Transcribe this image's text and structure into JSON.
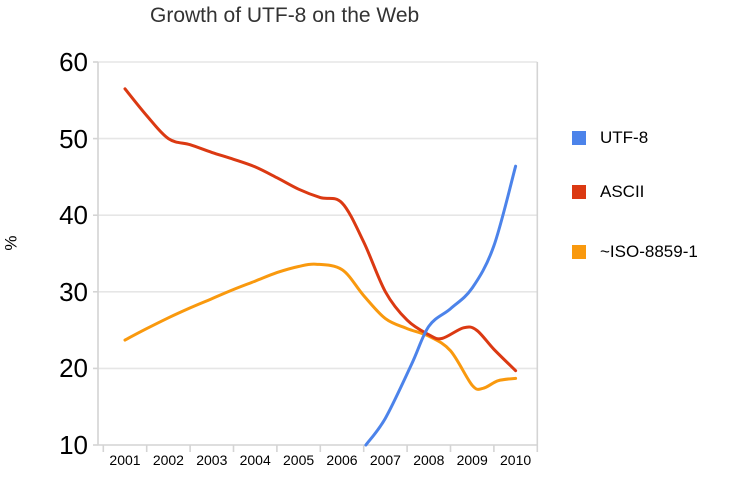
{
  "title": "Growth of UTF-8 on the Web",
  "colors": {
    "utf8": "#4C83EA",
    "ascii": "#DB3912",
    "iso": "#F9990E",
    "gridline": "#E6E6E6",
    "axis": "#D4D4D4",
    "title_text": "#333333",
    "label_text": "#000000"
  },
  "legend": {
    "items": [
      {
        "label": "UTF-8",
        "color": "#4C83EA"
      },
      {
        "label": "ASCII",
        "color": "#DB3912"
      },
      {
        "label": "~ISO-8859-1",
        "color": "#F9990E"
      }
    ]
  },
  "chart_data": {
    "type": "line",
    "title": "Growth of UTF-8 on the Web",
    "xlabel": "",
    "ylabel": "%",
    "x_ticks": [
      2001,
      2002,
      2003,
      2004,
      2005,
      2006,
      2007,
      2008,
      2009,
      2010
    ],
    "y_ticks": [
      10,
      20,
      30,
      40,
      50,
      60
    ],
    "ylim": [
      10,
      60
    ],
    "xlim": [
      2000.4,
      2010.5
    ],
    "grid": "horizontal",
    "legend_position": "right",
    "series": [
      {
        "name": "UTF-8",
        "color": "#4C83EA",
        "points": [
          [
            2006.55,
            10
          ],
          [
            2007,
            13.5
          ],
          [
            2007.6,
            20.5
          ],
          [
            2008,
            25.5
          ],
          [
            2008.5,
            27.8
          ],
          [
            2009,
            30.5
          ],
          [
            2009.5,
            36
          ],
          [
            2010,
            46.4
          ]
        ]
      },
      {
        "name": "ASCII",
        "color": "#DB3912",
        "points": [
          [
            2001,
            56.5
          ],
          [
            2001.5,
            53
          ],
          [
            2002,
            50
          ],
          [
            2002.5,
            49.2
          ],
          [
            2003,
            48.2
          ],
          [
            2003.5,
            47.3
          ],
          [
            2004,
            46.3
          ],
          [
            2004.5,
            44.9
          ],
          [
            2005,
            43.4
          ],
          [
            2005.5,
            42.3
          ],
          [
            2006,
            41.6
          ],
          [
            2006.5,
            36.5
          ],
          [
            2007,
            30
          ],
          [
            2007.5,
            26.3
          ],
          [
            2008,
            24.4
          ],
          [
            2008.3,
            23.9
          ],
          [
            2008.8,
            25.3
          ],
          [
            2009.1,
            25
          ],
          [
            2009.5,
            22.5
          ],
          [
            2010,
            19.7
          ]
        ]
      },
      {
        "name": "~ISO-8859-1",
        "color": "#F9990E",
        "points": [
          [
            2001,
            23.7
          ],
          [
            2001.5,
            25.2
          ],
          [
            2002,
            26.6
          ],
          [
            2002.5,
            27.9
          ],
          [
            2003,
            29.1
          ],
          [
            2003.5,
            30.3
          ],
          [
            2004,
            31.4
          ],
          [
            2004.5,
            32.5
          ],
          [
            2005,
            33.3
          ],
          [
            2005.4,
            33.6
          ],
          [
            2006,
            32.9
          ],
          [
            2006.5,
            29.5
          ],
          [
            2007,
            26.5
          ],
          [
            2007.5,
            25.2
          ],
          [
            2008,
            24.2
          ],
          [
            2008.5,
            22.3
          ],
          [
            2009,
            17.8
          ],
          [
            2009.25,
            17.4
          ],
          [
            2009.6,
            18.4
          ],
          [
            2010,
            18.7
          ]
        ]
      }
    ]
  }
}
